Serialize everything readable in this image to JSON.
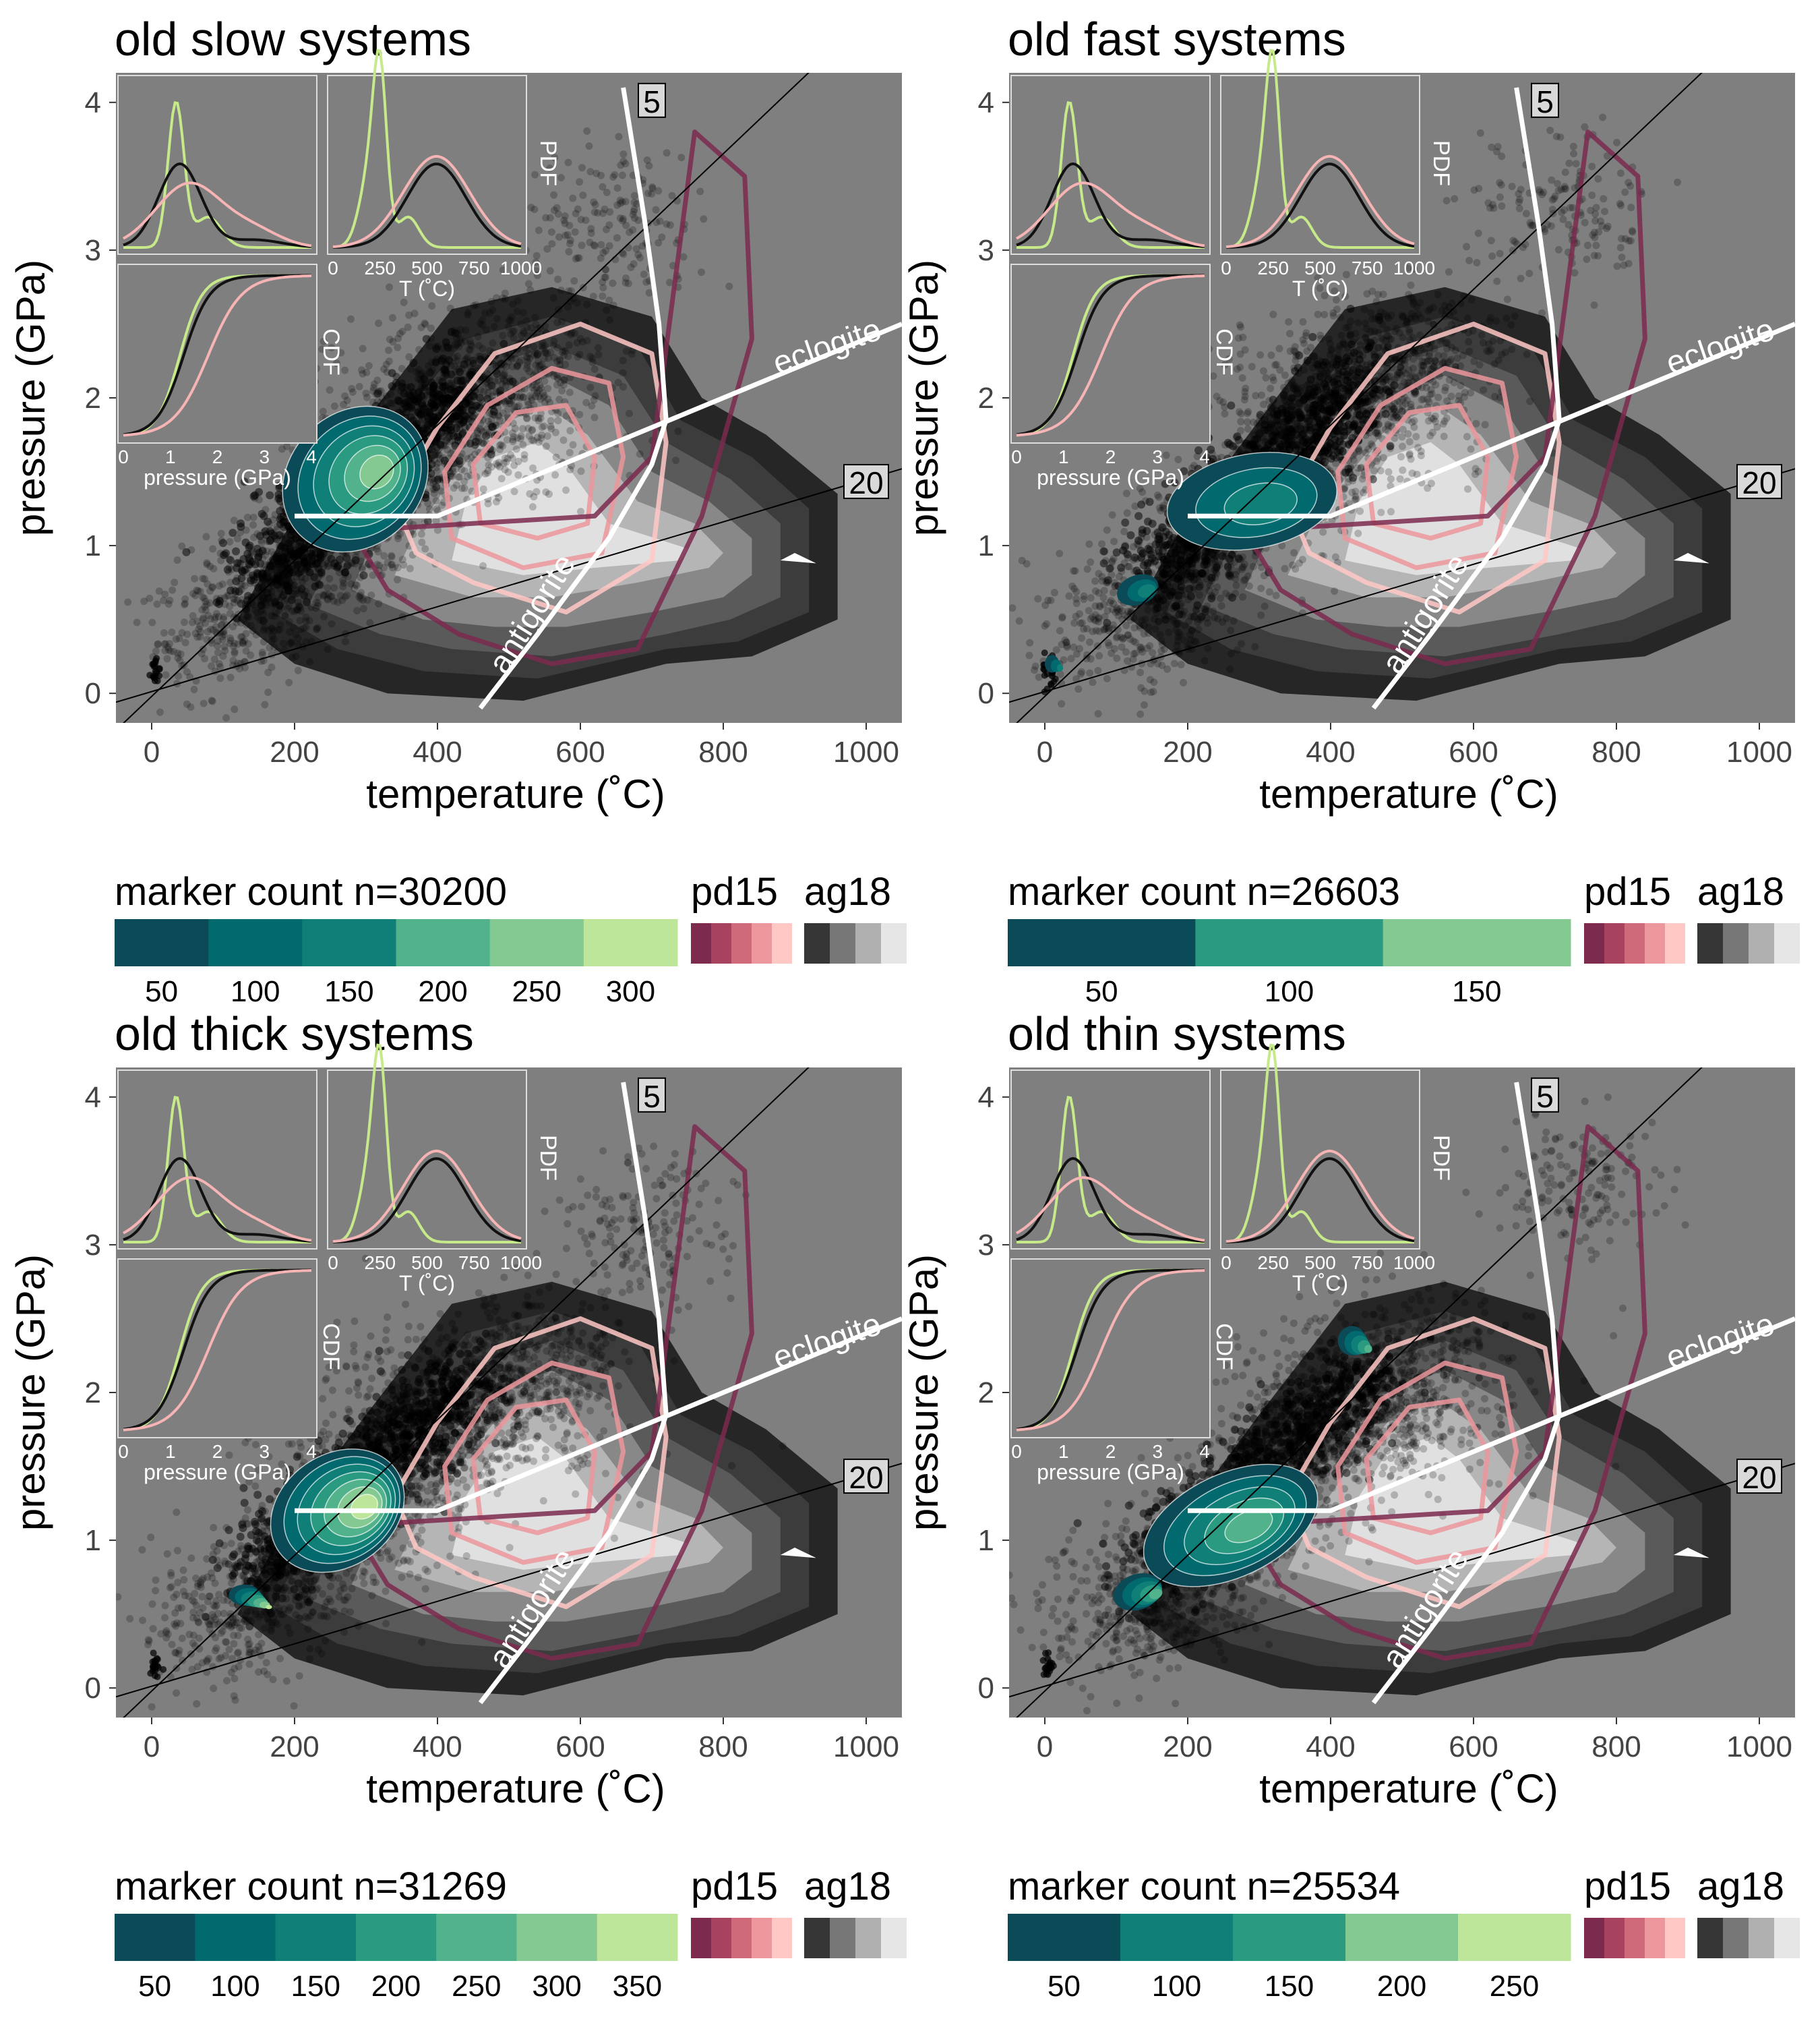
{
  "shared": {
    "xlabel": "temperature (˚C)",
    "ylabel": "pressure (GPa)",
    "x_ticks": [
      0,
      200,
      400,
      600,
      800,
      1000
    ],
    "y_ticks": [
      0,
      1,
      2,
      3,
      4
    ],
    "xlim": [
      -50,
      1050
    ],
    "ylim": [
      -0.2,
      4.2
    ],
    "reaction_labels": {
      "eclogite": "eclogite",
      "antigorite": "antigorite"
    },
    "gradient_labels": {
      "steep": "5",
      "shallow": "20"
    },
    "inset": {
      "pdf_label": "PDF",
      "cdf_label": "CDF",
      "pdf_xlabel": "T (˚C)",
      "cdf_xlabel": "pressure (GPa)",
      "pdf_ticks": [
        0,
        250,
        500,
        750,
        1000
      ],
      "cdf_ticks": [
        0,
        1,
        2,
        3,
        4
      ]
    },
    "legend_labels": {
      "pd15": "pd15",
      "ag18": "ag18"
    },
    "colors": {
      "panel_bg": "#7f7f7f",
      "marker_scale": [
        "#0b4a57",
        "#006a6f",
        "#0f7f78",
        "#2a9a80",
        "#52b28b",
        "#84c991",
        "#bde69a"
      ],
      "pd15_scale": [
        "#7d2a4f",
        "#a8435f",
        "#cf6a7a",
        "#eb979c",
        "#ffc8c4"
      ],
      "ag18_scale": [
        "#363636",
        "#777777",
        "#b0b0b0",
        "#e6e6e6"
      ],
      "inset_green": "#c6e98a",
      "inset_pink": "#f7b4b4",
      "inset_black": "#111111"
    }
  },
  "chart_data": [
    {
      "type": "scatter",
      "title": "old slow systems",
      "legend_title": "marker count n=30200",
      "legend_ticks": [
        "50",
        "100",
        "150",
        "200",
        "250",
        "300"
      ],
      "marker_bins": 6,
      "xlim": [
        -50,
        1050
      ],
      "ylim": [
        -0.2,
        4.2
      ],
      "density_peak": {
        "x": 265,
        "y": 1.1
      },
      "cloud": {
        "cx": 430,
        "cy": 1.9,
        "rx": 330,
        "ry": 0.55,
        "upper_tail": [
          640,
          3.2
        ]
      },
      "teal_patches": [
        {
          "cx": 285,
          "cy": 1.45,
          "rx": 110,
          "ry": 0.45,
          "rot": -45
        }
      ]
    },
    {
      "type": "scatter",
      "title": "old fast systems",
      "legend_title": "marker count n=26603",
      "legend_ticks": [
        "50",
        "100",
        "150"
      ],
      "marker_bins": 3,
      "xlim": [
        -50,
        1050
      ],
      "ylim": [
        -0.2,
        4.2
      ],
      "density_peak": {
        "x": 300,
        "y": 1.3
      },
      "cloud": {
        "cx": 430,
        "cy": 2.0,
        "rx": 320,
        "ry": 0.55,
        "upper_tail": [
          730,
          3.3
        ]
      },
      "teal_patches": [
        {
          "cx": 290,
          "cy": 1.3,
          "rx": 120,
          "ry": 0.32,
          "rot": -10
        },
        {
          "cx": 130,
          "cy": 0.7,
          "rx": 30,
          "ry": 0.1,
          "rot": -20
        },
        {
          "cx": 10,
          "cy": 0.2,
          "rx": 10,
          "ry": 0.06,
          "rot": 0
        }
      ]
    },
    {
      "type": "scatter",
      "title": "old thick systems",
      "legend_title": "marker count n=31269",
      "legend_ticks": [
        "50",
        "100",
        "150",
        "200",
        "250",
        "300",
        "350"
      ],
      "marker_bins": 7,
      "xlim": [
        -50,
        1050
      ],
      "ylim": [
        -0.2,
        4.2
      ],
      "density_peak": {
        "x": 250,
        "y": 1.05
      },
      "cloud": {
        "cx": 440,
        "cy": 1.9,
        "rx": 330,
        "ry": 0.55,
        "upper_tail": [
          700,
          3.1
        ]
      },
      "teal_patches": [
        {
          "cx": 260,
          "cy": 1.2,
          "rx": 100,
          "ry": 0.38,
          "rot": -35
        },
        {
          "cx": 130,
          "cy": 0.63,
          "rx": 22,
          "ry": 0.07,
          "rot": 0
        }
      ]
    },
    {
      "type": "scatter",
      "title": "old thin systems",
      "legend_title": "marker count n=25534",
      "legend_ticks": [
        "50",
        "100",
        "150",
        "200",
        "250"
      ],
      "marker_bins": 5,
      "xlim": [
        -50,
        1050
      ],
      "ylim": [
        -0.2,
        4.2
      ],
      "density_peak": {
        "x": 270,
        "y": 1.1
      },
      "cloud": {
        "cx": 440,
        "cy": 1.9,
        "rx": 330,
        "ry": 0.55,
        "upper_tail": [
          750,
          3.4
        ]
      },
      "teal_patches": [
        {
          "cx": 260,
          "cy": 1.1,
          "rx": 130,
          "ry": 0.35,
          "rot": -25
        },
        {
          "cx": 130,
          "cy": 0.65,
          "rx": 35,
          "ry": 0.12,
          "rot": -20
        },
        {
          "cx": 430,
          "cy": 2.35,
          "rx": 20,
          "ry": 0.1,
          "rot": 0
        }
      ]
    }
  ],
  "reference_lines": {
    "eclogite": [
      [
        200,
        1.2
      ],
      [
        400,
        1.2
      ],
      [
        1050,
        2.5
      ]
    ],
    "antigorite": [
      [
        460,
        -0.1
      ],
      [
        540,
        0.4
      ],
      [
        640,
        1.05
      ],
      [
        700,
        1.55
      ],
      [
        720,
        1.85
      ],
      [
        710,
        2.5
      ],
      [
        690,
        3.2
      ],
      [
        660,
        4.1
      ]
    ],
    "gradient_5": [
      [
        -50,
        -0.25
      ],
      [
        1050,
        4.8
      ]
    ],
    "gradient_20": [
      [
        -50,
        -0.06
      ],
      [
        1050,
        1.52
      ]
    ]
  },
  "pd15_contours": [
    [
      [
        370,
        0.95
      ],
      [
        450,
        0.75
      ],
      [
        580,
        0.55
      ],
      [
        700,
        0.9
      ],
      [
        720,
        1.7
      ],
      [
        700,
        2.3
      ],
      [
        600,
        2.5
      ],
      [
        480,
        2.3
      ],
      [
        400,
        1.8
      ],
      [
        340,
        1.3
      ]
    ],
    [
      [
        420,
        1.05
      ],
      [
        520,
        0.85
      ],
      [
        630,
        0.95
      ],
      [
        660,
        1.6
      ],
      [
        640,
        2.1
      ],
      [
        560,
        2.2
      ],
      [
        470,
        1.95
      ],
      [
        410,
        1.5
      ]
    ],
    [
      [
        460,
        1.15
      ],
      [
        540,
        1.05
      ],
      [
        610,
        1.15
      ],
      [
        620,
        1.6
      ],
      [
        580,
        1.95
      ],
      [
        510,
        1.9
      ],
      [
        450,
        1.55
      ]
    ],
    [
      [
        620,
        1.2
      ],
      [
        700,
        1.6
      ],
      [
        760,
        3.8
      ],
      [
        830,
        3.5
      ],
      [
        840,
        2.4
      ],
      [
        770,
        1.2
      ],
      [
        680,
        0.3
      ],
      [
        560,
        0.2
      ],
      [
        430,
        0.4
      ],
      [
        330,
        0.7
      ],
      [
        280,
        1.1
      ]
    ]
  ],
  "ag18_contours": [
    [
      [
        120,
        0.5
      ],
      [
        200,
        0.2
      ],
      [
        330,
        0.0
      ],
      [
        520,
        -0.05
      ],
      [
        720,
        0.2
      ],
      [
        840,
        0.25
      ],
      [
        960,
        0.5
      ],
      [
        960,
        1.35
      ],
      [
        860,
        1.75
      ],
      [
        770,
        2.0
      ],
      [
        700,
        2.55
      ],
      [
        560,
        2.75
      ],
      [
        420,
        2.6
      ],
      [
        300,
        1.85
      ],
      [
        200,
        1.2
      ]
    ],
    [
      [
        170,
        0.55
      ],
      [
        260,
        0.3
      ],
      [
        380,
        0.15
      ],
      [
        540,
        0.1
      ],
      [
        720,
        0.3
      ],
      [
        820,
        0.35
      ],
      [
        920,
        0.55
      ],
      [
        920,
        1.25
      ],
      [
        840,
        1.6
      ],
      [
        740,
        1.85
      ],
      [
        680,
        2.35
      ],
      [
        560,
        2.55
      ],
      [
        440,
        2.4
      ],
      [
        330,
        1.75
      ],
      [
        240,
        1.2
      ]
    ],
    [
      [
        220,
        0.6
      ],
      [
        320,
        0.4
      ],
      [
        420,
        0.3
      ],
      [
        560,
        0.25
      ],
      [
        720,
        0.4
      ],
      [
        810,
        0.5
      ],
      [
        880,
        0.65
      ],
      [
        880,
        1.15
      ],
      [
        810,
        1.45
      ],
      [
        720,
        1.7
      ],
      [
        660,
        2.15
      ],
      [
        560,
        2.35
      ],
      [
        460,
        2.2
      ],
      [
        360,
        1.65
      ],
      [
        280,
        1.2
      ]
    ],
    [
      [
        280,
        0.7
      ],
      [
        380,
        0.5
      ],
      [
        480,
        0.45
      ],
      [
        580,
        0.45
      ],
      [
        700,
        0.55
      ],
      [
        800,
        0.65
      ],
      [
        840,
        0.8
      ],
      [
        840,
        1.05
      ],
      [
        780,
        1.3
      ],
      [
        700,
        1.5
      ],
      [
        640,
        1.95
      ],
      [
        560,
        2.15
      ],
      [
        470,
        2.0
      ],
      [
        390,
        1.55
      ],
      [
        320,
        1.15
      ]
    ],
    [
      [
        340,
        0.8
      ],
      [
        450,
        0.65
      ],
      [
        560,
        0.65
      ],
      [
        680,
        0.75
      ],
      [
        780,
        0.85
      ],
      [
        800,
        0.95
      ],
      [
        760,
        1.15
      ],
      [
        680,
        1.3
      ],
      [
        610,
        1.75
      ],
      [
        550,
        1.95
      ],
      [
        480,
        1.8
      ],
      [
        420,
        1.45
      ],
      [
        370,
        1.1
      ]
    ],
    [
      [
        420,
        0.9
      ],
      [
        520,
        0.8
      ],
      [
        620,
        0.85
      ],
      [
        740,
        0.9
      ],
      [
        750,
        0.98
      ],
      [
        640,
        1.15
      ],
      [
        580,
        1.55
      ],
      [
        540,
        1.7
      ],
      [
        480,
        1.6
      ],
      [
        440,
        1.3
      ]
    ]
  ]
}
